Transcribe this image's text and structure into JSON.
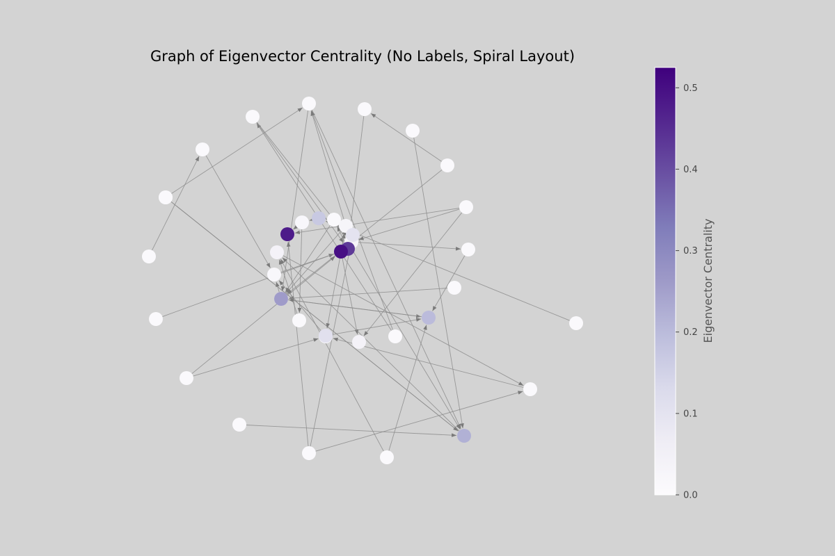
{
  "title": "Graph of Eigenvector Centrality (No Labels, Spiral Layout)",
  "colorbar": {
    "label": "Eigenvector Centrality",
    "min": 0.0,
    "max": 0.525,
    "ticks": [
      "0.0",
      "0.1",
      "0.2",
      "0.3",
      "0.4",
      "0.5"
    ],
    "colormap": [
      "#fcfbfd",
      "#efedf5",
      "#dadaeb",
      "#bcbddc",
      "#9e9ac8",
      "#807dba",
      "#6a51a3",
      "#54278f",
      "#3f007d"
    ]
  },
  "style": {
    "background": "#d3d3d3",
    "edge_color": "#8c8c8c",
    "arrow_color": "#7a7a7a"
  },
  "chart_data": {
    "type": "network",
    "layout": "spiral",
    "directed": true,
    "node_labels_shown": false,
    "nodes": [
      {
        "id": 0,
        "centrality": 0.5
      },
      {
        "id": 1,
        "centrality": 0.48
      },
      {
        "id": 2,
        "centrality": 0.43
      },
      {
        "id": 3,
        "centrality": 0.17
      },
      {
        "id": 4,
        "centrality": 0.03
      },
      {
        "id": 5,
        "centrality": 0.03
      },
      {
        "id": 6,
        "centrality": 0.01
      },
      {
        "id": 7,
        "centrality": 0.02
      },
      {
        "id": 8,
        "centrality": 0.1
      },
      {
        "id": 9,
        "centrality": 0.04
      },
      {
        "id": 10,
        "centrality": 0.02
      },
      {
        "id": 11,
        "centrality": 0.01
      },
      {
        "id": 12,
        "centrality": 0.01
      },
      {
        "id": 13,
        "centrality": 0.04
      },
      {
        "id": 14,
        "centrality": 0.01
      },
      {
        "id": 15,
        "centrality": 0.2
      },
      {
        "id": 16,
        "centrality": 0.01
      },
      {
        "id": 17,
        "centrality": 0.01
      },
      {
        "id": 18,
        "centrality": 0.01
      },
      {
        "id": 19,
        "centrality": 0.01
      },
      {
        "id": 20,
        "centrality": 0.01
      },
      {
        "id": 21,
        "centrality": 0.01
      },
      {
        "id": 22,
        "centrality": 0.01
      },
      {
        "id": 23,
        "centrality": 0.01
      },
      {
        "id": 24,
        "centrality": 0.01
      },
      {
        "id": 25,
        "centrality": 0.26
      },
      {
        "id": 26,
        "centrality": 0.01
      },
      {
        "id": 27,
        "centrality": 0.01
      },
      {
        "id": 28,
        "centrality": 0.01
      },
      {
        "id": 29,
        "centrality": 0.01
      },
      {
        "id": 30,
        "centrality": 0.01
      },
      {
        "id": 31,
        "centrality": 0.01
      },
      {
        "id": 32,
        "centrality": 0.01
      },
      {
        "id": 33,
        "centrality": 0.22
      },
      {
        "id": 34,
        "centrality": 0.01
      },
      {
        "id": 35,
        "centrality": 0.01
      },
      {
        "id": 36,
        "centrality": 0.11
      },
      {
        "id": 37,
        "centrality": 0.01
      },
      {
        "id": 38,
        "centrality": 0.01
      }
    ],
    "edges": [
      [
        7,
        1
      ],
      [
        12,
        10
      ],
      [
        14,
        23
      ],
      [
        14,
        22
      ],
      [
        17,
        15
      ],
      [
        16,
        25
      ],
      [
        19,
        21
      ],
      [
        18,
        5
      ],
      [
        20,
        33
      ],
      [
        18,
        13
      ],
      [
        9,
        34
      ],
      [
        11,
        9
      ],
      [
        30,
        33
      ],
      [
        26,
        33
      ],
      [
        31,
        8
      ],
      [
        22,
        33
      ],
      [
        27,
        24
      ],
      [
        22,
        25
      ],
      [
        38,
        33
      ],
      [
        4,
        22
      ],
      [
        32,
        15
      ],
      [
        5,
        17
      ],
      [
        31,
        1
      ],
      [
        24,
        10
      ],
      [
        4,
        36
      ],
      [
        6,
        33
      ],
      [
        23,
        2
      ],
      [
        32,
        9
      ],
      [
        21,
        2
      ],
      [
        18,
        1
      ],
      [
        31,
        34
      ],
      [
        6,
        25
      ],
      [
        3,
        6
      ],
      [
        3,
        7
      ],
      [
        4,
        25
      ],
      [
        19,
        25
      ],
      [
        23,
        5
      ],
      [
        10,
        0
      ],
      [
        36,
        15
      ],
      [
        29,
        0
      ],
      [
        28,
        2
      ],
      [
        26,
        22
      ],
      [
        29,
        12
      ],
      [
        34,
        12
      ],
      [
        37,
        15
      ],
      [
        25,
        10
      ],
      [
        35,
        3
      ],
      [
        0,
        4
      ],
      [
        7,
        11
      ],
      [
        0,
        13
      ],
      [
        5,
        8
      ],
      [
        15,
        37
      ],
      [
        33,
        9
      ],
      [
        2,
        6
      ]
    ]
  }
}
